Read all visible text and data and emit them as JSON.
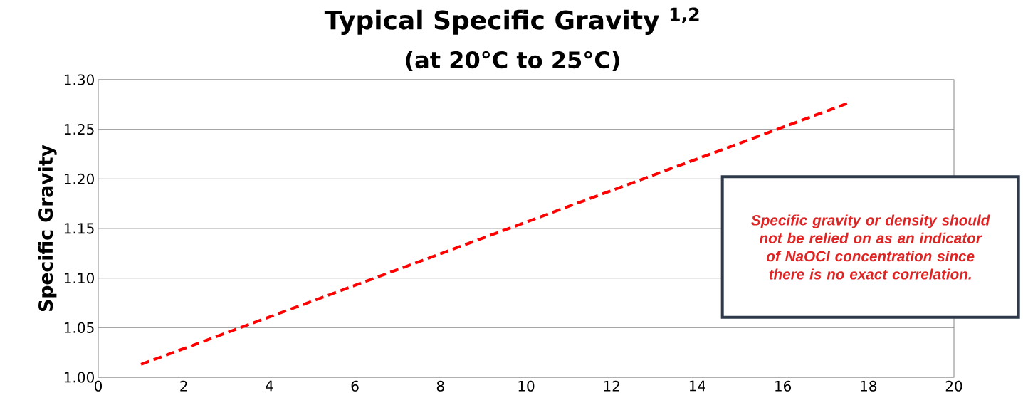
{
  "chart_data": {
    "type": "line",
    "title": "Typical Specific Gravity $^{1,2}$",
    "subtitle": "(at 20°C to 25°C)",
    "ylabel": "Specific Gravity",
    "series": [
      {
        "color": "#ff0000",
        "x": [
          1,
          17.5
        ],
        "values": [
          1.013,
          1.276
        ]
      }
    ],
    "xlim": [
      0,
      20
    ],
    "xticks": [
      0,
      2,
      4,
      6,
      8,
      10,
      12,
      14,
      16,
      18,
      20
    ],
    "ylim": [
      1.0,
      1.3
    ],
    "yticks": [
      {
        "value": 1.0,
        "label": "1.00"
      },
      {
        "value": 1.05,
        "label": "1.05"
      },
      {
        "value": 1.1,
        "label": "1.10"
      },
      {
        "value": 1.15,
        "label": "1.15"
      },
      {
        "value": 1.2,
        "label": "1.20"
      },
      {
        "value": 1.25,
        "label": "1.25"
      },
      {
        "value": 1.3,
        "label": "1.30"
      }
    ],
    "grid": "y",
    "marker": "none",
    "line_style": "dashed",
    "annotations": [
      "Specific gravity or density should not be relied on as an indicator of NaOCl concentration since there is no exact correlation."
    ]
  }
}
